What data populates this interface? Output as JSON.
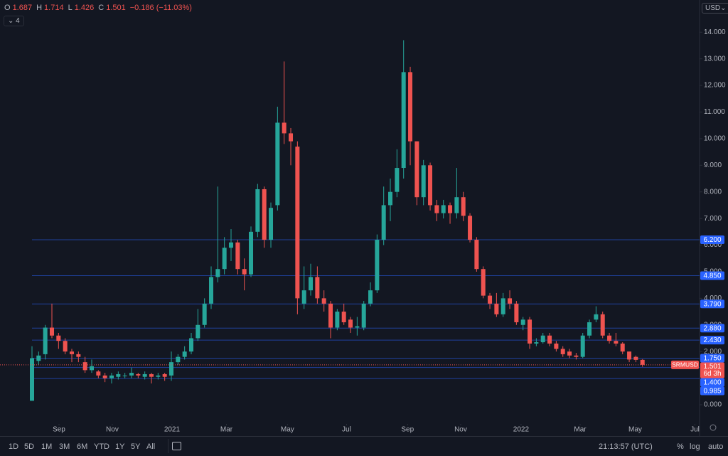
{
  "toolbar": {
    "ohlc_labels": [
      "O",
      "H",
      "L",
      "C"
    ],
    "change": "−0.186 (−11.03%)",
    "indicators": "4",
    "currency": "USD"
  },
  "chart_data": {
    "type": "candlestick",
    "open": [
      0.15,
      1.65,
      1.9,
      2.9,
      2.6,
      2.4,
      2.0,
      1.9,
      1.6,
      1.3,
      1.25,
      1.1,
      1.0,
      1.05,
      1.1,
      1.1,
      1.15,
      1.05,
      1.15,
      1.05,
      1.15,
      1.1,
      1.6,
      1.8,
      2.0,
      2.5,
      3.0,
      3.8,
      4.8,
      5.1,
      5.9,
      6.1,
      5.1,
      4.9,
      6.5,
      8.1,
      6.2,
      7.5,
      10.6,
      10.2,
      9.7,
      3.8,
      4.3,
      4.8,
      4.0,
      3.8,
      2.9,
      3.5,
      3.2,
      2.9,
      2.9,
      3.8,
      4.3,
      6.2,
      7.5,
      8.0,
      8.9,
      12.5,
      9.9,
      7.8,
      9.0,
      7.5,
      7.2,
      7.5,
      7.2,
      7.8,
      7.1,
      6.2,
      5.1,
      4.1,
      3.8,
      3.4,
      4.0,
      3.8,
      3.0,
      3.2,
      2.3,
      2.35,
      2.6,
      2.3,
      2.1,
      2.0,
      1.85,
      1.8,
      2.6,
      3.2,
      3.4,
      2.6,
      2.4,
      2.3,
      2.0,
      1.8,
      1.687
    ],
    "high": [
      2.2,
      2.0,
      3.0,
      3.8,
      2.7,
      2.5,
      2.1,
      2.0,
      1.8,
      1.7,
      1.3,
      1.2,
      1.2,
      1.25,
      1.2,
      1.4,
      1.2,
      1.25,
      1.2,
      1.2,
      1.2,
      2.0,
      1.9,
      2.2,
      2.7,
      3.6,
      4.0,
      5.2,
      8.2,
      6.3,
      6.6,
      6.2,
      5.5,
      6.7,
      8.3,
      8.2,
      7.6,
      11.2,
      12.9,
      10.4,
      9.9,
      5.2,
      5.3,
      5.2,
      4.3,
      3.9,
      3.6,
      3.8,
      3.3,
      3.3,
      3.9,
      4.6,
      6.4,
      8.2,
      8.5,
      9.6,
      13.7,
      12.7,
      9.9,
      9.2,
      9.1,
      7.7,
      7.7,
      7.6,
      8.9,
      8.0,
      7.2,
      6.3,
      5.2,
      4.2,
      4.2,
      4.2,
      4.3,
      3.9,
      3.3,
      3.3,
      2.5,
      2.7,
      2.7,
      2.4,
      2.2,
      2.1,
      1.95,
      2.7,
      3.2,
      3.7,
      3.5,
      2.7,
      2.7,
      2.35,
      2.0,
      1.85,
      1.714
    ],
    "low": [
      0.15,
      1.5,
      1.7,
      2.5,
      2.1,
      1.9,
      1.6,
      1.6,
      1.2,
      1.2,
      1.0,
      0.85,
      0.8,
      0.95,
      1.0,
      1.0,
      1.0,
      0.95,
      0.8,
      0.95,
      0.9,
      0.9,
      1.5,
      1.7,
      1.9,
      2.4,
      2.9,
      3.6,
      4.6,
      4.9,
      5.4,
      4.9,
      4.3,
      4.8,
      6.3,
      5.9,
      5.9,
      7.3,
      9.8,
      9.0,
      3.4,
      3.6,
      4.1,
      3.8,
      3.5,
      2.5,
      2.8,
      3.0,
      2.7,
      2.6,
      2.8,
      3.7,
      4.2,
      6.0,
      6.9,
      7.8,
      8.5,
      9.0,
      7.5,
      7.5,
      7.3,
      6.9,
      7.0,
      6.8,
      7.0,
      6.9,
      6.1,
      5.0,
      4.0,
      3.6,
      3.3,
      3.3,
      3.6,
      3.0,
      2.8,
      2.1,
      2.2,
      2.3,
      2.2,
      2.0,
      1.8,
      1.75,
      1.7,
      1.75,
      2.5,
      3.1,
      2.5,
      2.3,
      2.2,
      1.9,
      1.6,
      1.6,
      1.426
    ],
    "close": [
      1.75,
      1.85,
      2.9,
      2.6,
      2.4,
      2.0,
      1.9,
      1.8,
      1.3,
      1.45,
      1.1,
      1.0,
      1.1,
      1.15,
      1.1,
      1.2,
      1.1,
      1.15,
      1.05,
      1.1,
      1.05,
      1.6,
      1.8,
      2.0,
      2.5,
      3.0,
      3.8,
      4.8,
      5.1,
      5.9,
      6.1,
      5.1,
      4.9,
      6.5,
      8.1,
      6.2,
      7.4,
      10.6,
      10.2,
      9.9,
      4.0,
      4.3,
      4.8,
      4.0,
      3.8,
      2.9,
      3.5,
      3.1,
      2.9,
      2.95,
      3.8,
      4.3,
      6.2,
      7.5,
      8.0,
      8.9,
      12.5,
      9.9,
      7.8,
      9.0,
      7.5,
      7.2,
      7.5,
      7.2,
      7.8,
      7.1,
      6.2,
      5.1,
      4.1,
      3.8,
      3.4,
      4.0,
      3.8,
      3.1,
      3.2,
      2.3,
      2.35,
      2.6,
      2.3,
      2.1,
      1.9,
      1.85,
      1.8,
      2.6,
      3.1,
      3.4,
      2.6,
      2.4,
      2.3,
      2.0,
      1.7,
      1.687,
      1.501
    ],
    "up_color": "#26a69a",
    "down_color": "#ef5350",
    "ylim": [
      -1.15,
      15.21
    ],
    "yticks": [
      {
        "value": 0,
        "label": "0.000"
      },
      {
        "value": 1,
        "label": "1.000"
      },
      {
        "value": 2,
        "label": "2.000"
      },
      {
        "value": 3,
        "label": "3.000"
      },
      {
        "value": 4,
        "label": "4.000"
      },
      {
        "value": 5,
        "label": "5.000"
      },
      {
        "value": 6,
        "label": "6.000"
      },
      {
        "value": 7,
        "label": "7.000"
      },
      {
        "value": 8,
        "label": "8.000"
      },
      {
        "value": 9,
        "label": "9.000"
      },
      {
        "value": 10,
        "label": "10.000"
      },
      {
        "value": 11,
        "label": "11.000"
      },
      {
        "value": 12,
        "label": "12.000"
      },
      {
        "value": 13,
        "label": "13.000"
      },
      {
        "value": 14,
        "label": "14.000"
      }
    ],
    "xlim": [
      -4.82,
      100.6
    ],
    "xticks": [
      {
        "value": 4.07,
        "label": "Sep"
      },
      {
        "value": 12.1,
        "label": "Nov"
      },
      {
        "value": 21.1,
        "label": "2021"
      },
      {
        "value": 29.3,
        "label": "Mar"
      },
      {
        "value": 38.5,
        "label": "May"
      },
      {
        "value": 47.4,
        "label": "Jul"
      },
      {
        "value": 56.6,
        "label": "Sep"
      },
      {
        "value": 64.6,
        "label": "Nov"
      },
      {
        "value": 73.7,
        "label": "2022"
      },
      {
        "value": 82.6,
        "label": "Mar"
      },
      {
        "value": 90.9,
        "label": "May"
      },
      {
        "value": 99.9,
        "label": "Jul"
      }
    ],
    "levels": [
      {
        "value": 6.2,
        "label": "6.200"
      },
      {
        "value": 4.85,
        "label": "4.850"
      },
      {
        "value": 3.79,
        "label": "3.790"
      },
      {
        "value": 2.88,
        "label": "2.880"
      },
      {
        "value": 2.43,
        "label": "2.430"
      },
      {
        "value": 1.75,
        "label": "1.750"
      },
      {
        "value": 1.4,
        "label": "1.400"
      },
      0.985
    ],
    "level_color": "#2962ff",
    "last_price": {
      "symbol": "SRMUSD",
      "countdown": "6d 3h"
    }
  },
  "bottom_bar": {
    "ranges": [
      "1D",
      "5D",
      "1M",
      "3M",
      "6M",
      "YTD",
      "1Y",
      "5Y",
      "All"
    ],
    "time": "21:13:57 (UTC)",
    "options": [
      "%",
      "log",
      "auto"
    ]
  }
}
